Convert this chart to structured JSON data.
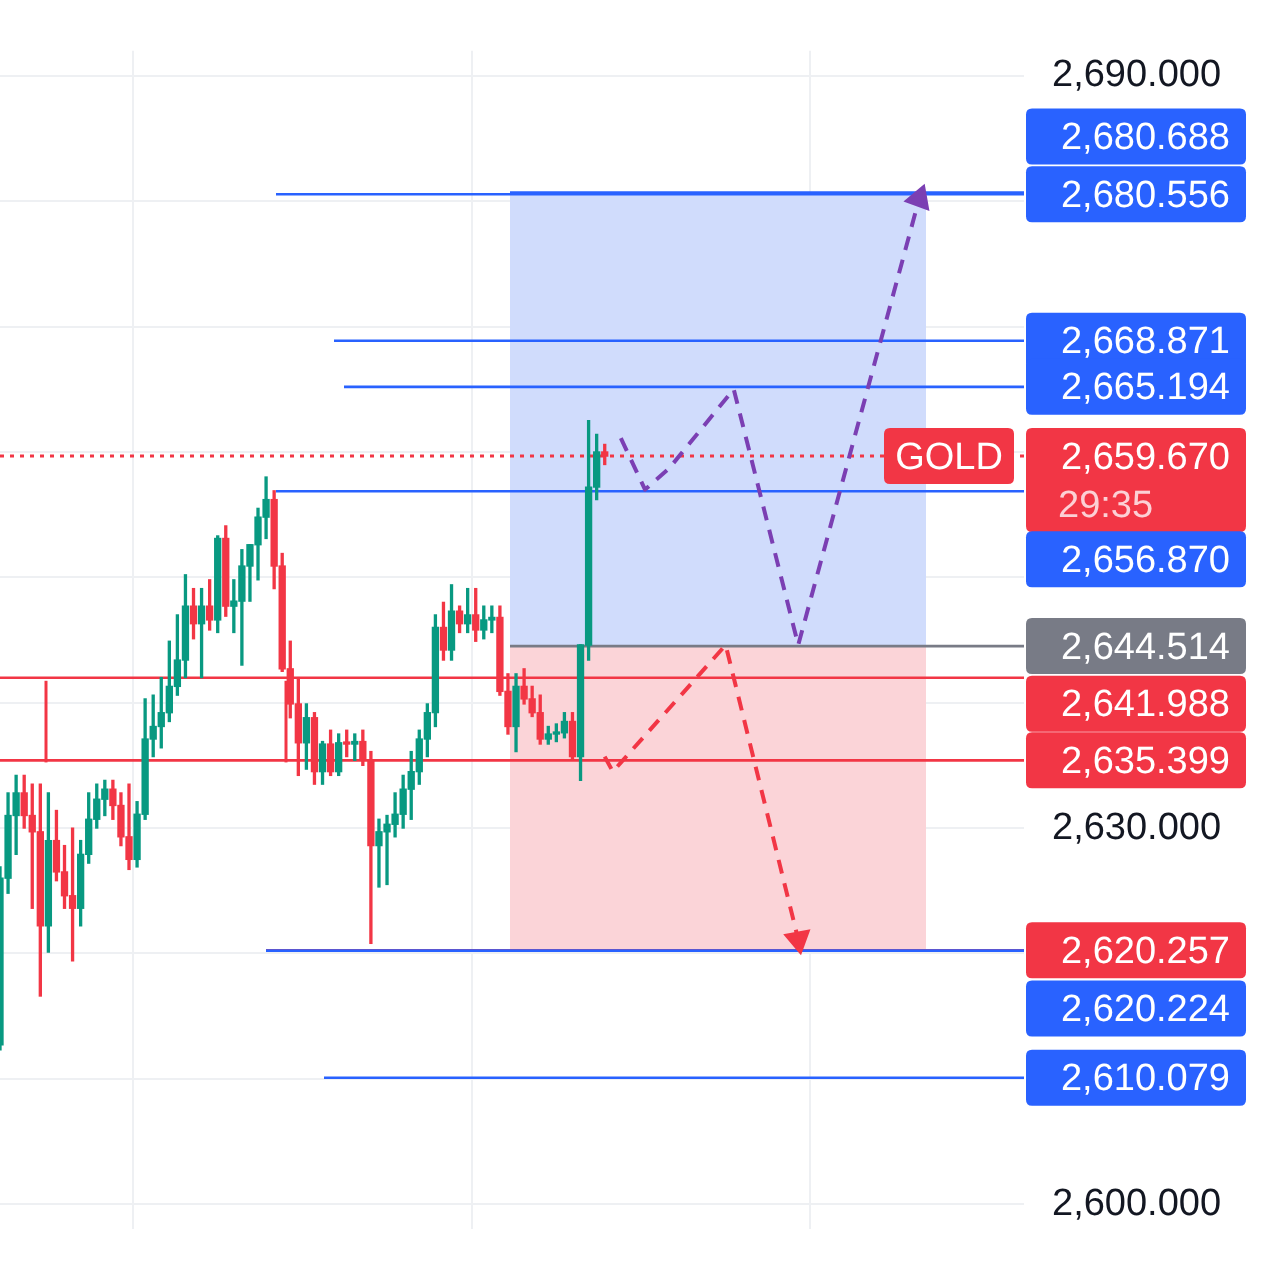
{
  "chart_data": {
    "type": "candlestick",
    "categories": [
      null,
      null,
      null,
      null,
      null,
      null,
      null,
      null,
      null,
      null,
      null,
      null,
      null,
      null,
      null,
      null,
      null,
      null,
      null,
      null,
      null,
      null,
      null,
      null,
      null,
      null,
      null,
      null,
      null,
      null,
      null,
      null,
      null,
      null,
      null,
      null,
      null,
      null,
      null,
      null,
      null,
      null,
      null,
      null,
      null,
      null,
      null,
      null,
      null,
      null,
      null,
      null,
      null,
      null,
      null,
      null,
      null,
      null,
      null,
      null,
      null,
      null,
      null,
      null,
      null,
      null,
      null,
      null,
      null,
      null,
      null,
      null,
      null,
      null,
      null,
      null,
      null,
      null,
      null,
      null,
      null,
      null,
      null,
      null,
      null,
      null,
      null,
      null,
      null,
      null,
      null,
      null,
      null,
      null,
      null,
      null,
      null,
      null,
      null,
      null,
      null,
      null,
      null,
      null,
      null,
      null,
      null,
      null,
      null,
      null,
      null,
      null,
      null,
      null,
      null,
      null,
      null,
      null,
      null,
      null,
      null,
      null,
      null,
      null,
      null,
      null,
      null,
      null
    ],
    "ohlc": [
      [
        2612.7,
        2626.9,
        2612.3,
        2626.0
      ],
      [
        2626.0,
        2632.8,
        2624.8,
        2631.0
      ],
      [
        2631.0,
        2634.2,
        2627.9,
        2632.8
      ],
      [
        2632.8,
        2634.2,
        2630.0,
        2631.0
      ],
      [
        2631.0,
        2633.5,
        2623.6,
        2629.7
      ],
      [
        2629.7,
        2633.5,
        2616.6,
        2622.2
      ],
      [
        2622.2,
        2632.8,
        2620.1,
        2629.0
      ],
      [
        2629.0,
        2631.4,
        2625.8,
        2626.5
      ],
      [
        2626.5,
        2628.6,
        2623.6,
        2624.6
      ],
      [
        2624.6,
        2630.0,
        2619.4,
        2623.6
      ],
      [
        2623.6,
        2629.0,
        2622.2,
        2627.9
      ],
      [
        2627.9,
        2632.8,
        2627.2,
        2630.7
      ],
      [
        2630.7,
        2633.5,
        2630.0,
        2632.3
      ],
      [
        2632.3,
        2633.8,
        2631.0,
        2633.1
      ],
      [
        2633.1,
        2633.8,
        2630.7,
        2631.8
      ],
      [
        2631.8,
        2632.8,
        2628.6,
        2629.3
      ],
      [
        2629.3,
        2633.5,
        2626.7,
        2627.5
      ],
      [
        2627.5,
        2632.1,
        2626.9,
        2631.1
      ],
      [
        2631.1,
        2640.3,
        2630.7,
        2637.1
      ],
      [
        2637.1,
        2640.6,
        2635.7,
        2638.1
      ],
      [
        2638.1,
        2642.0,
        2636.4,
        2639.2
      ],
      [
        2639.2,
        2644.9,
        2638.5,
        2641.3
      ],
      [
        2641.3,
        2647.0,
        2640.6,
        2643.4
      ],
      [
        2643.4,
        2650.2,
        2642.0,
        2647.7
      ],
      [
        2647.7,
        2649.1,
        2645.1,
        2646.3
      ],
      [
        2646.3,
        2649.1,
        2642.0,
        2647.7
      ],
      [
        2647.7,
        2649.8,
        2645.8,
        2646.6
      ],
      [
        2646.6,
        2653.3,
        2645.6,
        2653.1
      ],
      [
        2653.1,
        2654.1,
        2646.9,
        2647.7
      ],
      [
        2647.7,
        2649.8,
        2645.6,
        2648.1
      ],
      [
        2648.1,
        2652.2,
        2643.0,
        2650.9
      ],
      [
        2650.9,
        2652.6,
        2648.1,
        2652.6
      ],
      [
        2652.6,
        2655.5,
        2649.8,
        2654.8
      ],
      [
        2654.8,
        2658.0,
        2653.1,
        2656.2
      ],
      [
        2656.2,
        2656.9,
        2649.1,
        2650.9
      ],
      [
        2650.9,
        2651.9,
        2642.5,
        2642.7
      ],
      [
        2642.7,
        2644.9,
        2638.8,
        2639.9
      ],
      [
        2639.9,
        2642.0,
        2634.2,
        2636.8
      ],
      [
        2636.8,
        2639.9,
        2634.7,
        2638.8
      ],
      [
        2638.8,
        2639.2,
        2633.5,
        2634.5
      ],
      [
        2634.5,
        2636.9,
        2633.5,
        2636.7
      ],
      [
        2636.7,
        2637.8,
        2634.2,
        2634.5
      ],
      [
        2634.5,
        2637.5,
        2634.2,
        2636.8
      ],
      [
        2636.8,
        2637.8,
        2635.7,
        2636.7
      ],
      [
        2636.7,
        2637.5,
        2635.4,
        2636.9
      ],
      [
        2636.9,
        2637.8,
        2635.0,
        2635.4
      ],
      [
        2635.4,
        2636.1,
        2620.8,
        2628.6
      ],
      [
        2628.6,
        2630.7,
        2625.3,
        2629.7
      ],
      [
        2629.7,
        2631.0,
        2625.5,
        2630.3
      ],
      [
        2630.3,
        2632.8,
        2629.3,
        2631.1
      ],
      [
        2631.1,
        2634.2,
        2630.0,
        2633.1
      ],
      [
        2633.1,
        2636.1,
        2630.7,
        2634.5
      ],
      [
        2634.5,
        2637.8,
        2633.5,
        2637.1
      ],
      [
        2637.1,
        2639.9,
        2635.7,
        2639.2
      ],
      [
        2639.2,
        2647.0,
        2638.1,
        2646.0
      ],
      [
        2646.0,
        2648.0,
        2643.4,
        2644.2
      ],
      [
        2644.2,
        2649.4,
        2643.4,
        2647.3
      ],
      [
        2647.3,
        2647.7,
        2645.6,
        2646.3
      ],
      [
        2646.3,
        2649.1,
        2645.6,
        2647.0
      ],
      [
        2647.0,
        2649.1,
        2644.9,
        2645.8
      ],
      [
        2645.8,
        2647.7,
        2645.1,
        2646.6
      ],
      [
        2646.6,
        2647.7,
        2645.6,
        2646.8
      ],
      [
        2646.8,
        2647.7,
        2640.6,
        2640.9
      ],
      [
        2640.9,
        2642.3,
        2637.5,
        2638.1
      ],
      [
        2638.1,
        2642.3,
        2636.1,
        2641.3
      ],
      [
        2641.3,
        2642.7,
        2639.9,
        2640.3
      ],
      [
        2640.3,
        2641.3,
        2638.9,
        2639.2
      ],
      [
        2639.2,
        2640.6,
        2636.7,
        2637.1
      ],
      [
        2637.1,
        2638.1,
        2636.7,
        2637.5
      ],
      [
        2637.5,
        2638.3,
        2636.9,
        2637.6
      ],
      [
        2637.6,
        2639.2,
        2637.2,
        2638.5
      ],
      [
        2638.5,
        2639.2,
        2635.5,
        2635.7
      ],
      [
        2635.7,
        2644.6,
        2633.8,
        2644.6
      ],
      [
        2644.6,
        2662.5,
        2643.4,
        2657.2
      ],
      [
        2657.2,
        2661.4,
        2656.2,
        2660.0
      ],
      [
        2660.0,
        2660.6,
        2659.0,
        2659.67
      ],
      null,
      null,
      null,
      null,
      null,
      null,
      null,
      null,
      null,
      null,
      null,
      null,
      null,
      null,
      null,
      null,
      null,
      null,
      null,
      null,
      null,
      null,
      null,
      null,
      null,
      null,
      null,
      null,
      null,
      null,
      null,
      null,
      null,
      null,
      null,
      null,
      null,
      null,
      null,
      null,
      null,
      null,
      null,
      null,
      null,
      null,
      null,
      null,
      null,
      null,
      null,
      null
    ],
    "colors": [
      "#089981",
      "#089981",
      "#089981",
      "#f23645",
      "#f23645",
      "#f23645",
      "#089981",
      "#f23645",
      "#f23645",
      "#f23645",
      "#089981",
      "#089981",
      "#089981",
      "#089981",
      "#f23645",
      "#f23645",
      "#f23645",
      "#089981",
      "#089981",
      "#089981",
      "#089981",
      "#089981",
      "#089981",
      "#089981",
      "#f23645",
      "#089981",
      "#f23645",
      "#089981",
      "#f23645",
      "#089981",
      "#089981",
      "#089981",
      "#089981",
      "#089981",
      "#f23645",
      "#f23645",
      "#f23645",
      "#f23645",
      "#089981",
      "#f23645",
      "#089981",
      "#f23645",
      "#089981",
      "#f23645",
      "#089981",
      "#f23645",
      "#f23645",
      "#089981",
      "#089981",
      "#089981",
      "#089981",
      "#089981",
      "#089981",
      "#089981",
      "#089981",
      "#f23645",
      "#089981",
      "#f23645",
      "#089981",
      "#f23645",
      "#089981",
      "#089981",
      "#f23645",
      "#f23645",
      "#089981",
      "#f23645",
      "#f23645",
      "#f23645",
      "#089981",
      "#089981",
      "#089981",
      "#f23645",
      "#089981",
      "#089981",
      "#089981",
      "#f23645",
      null,
      null,
      null,
      null,
      null,
      null,
      null,
      null,
      null,
      null,
      null,
      null,
      null,
      null,
      null,
      null,
      null,
      null,
      null,
      null,
      null,
      null,
      null,
      null,
      null,
      null,
      null,
      null,
      null,
      null,
      null,
      null,
      null,
      null,
      null,
      null,
      null,
      null,
      null,
      null,
      null,
      null,
      null,
      null,
      null,
      null,
      null,
      null,
      null,
      null,
      null,
      null
    ],
    "ylim": [
      2598,
      2692
    ],
    "yticks": [
      {
        "value": 2600,
        "label": "2,600.000"
      },
      {
        "value": 2610,
        "label": null
      },
      {
        "value": 2620,
        "label": null
      },
      {
        "value": 2630,
        "label": "2,630.000"
      },
      {
        "value": 2640,
        "label": null
      },
      {
        "value": 2650,
        "label": null
      },
      {
        "value": 2660,
        "label": null
      },
      {
        "value": 2670,
        "label": null
      },
      {
        "value": 2680,
        "label": null
      },
      {
        "value": 2690,
        "label": "2,690.000"
      }
    ],
    "grid": true,
    "tick_labels": "y",
    "ref_lines": [
      {
        "axis": "y",
        "value": 2680.556,
        "label": "2,680.556",
        "color": "#2962ff"
      },
      {
        "axis": "y",
        "value": 2668.871,
        "label": "2,668.871",
        "color": "#2962ff"
      },
      {
        "axis": "y",
        "value": 2665.194,
        "label": "2,665.194",
        "color": "#2962ff"
      },
      {
        "axis": "y",
        "value": 2659.67,
        "label": "2,659.670",
        "color": "#f23645",
        "line_style": "dotted"
      },
      {
        "axis": "y",
        "value": 2656.87,
        "label": "2,656.870",
        "color": "#2962ff"
      },
      {
        "axis": "y",
        "value": 2644.514,
        "label": "2,644.514",
        "color": "#787b86"
      },
      {
        "axis": "y",
        "value": 2641.988,
        "label": "2,641.988",
        "color": "#f23645"
      },
      {
        "axis": "y",
        "value": 2635.399,
        "label": "2,635.399",
        "color": "#f23645"
      },
      {
        "axis": "y",
        "value": 2620.257,
        "label": "2,620.257",
        "color": "#f23645"
      },
      {
        "axis": "y",
        "value": 2620.224,
        "label": "2,620.224",
        "color": "#2962ff"
      },
      {
        "axis": "y",
        "value": 2610.079,
        "label": "2,610.079",
        "color": "#2962ff"
      },
      {
        "axis": "y",
        "value": 2680.688,
        "label": "2,680.688",
        "color": "#2962ff"
      }
    ],
    "bands": [
      {
        "axis": "y",
        "from": 2644.514,
        "to": 2680.556,
        "color": "#d0dcfc"
      },
      {
        "axis": "y",
        "from": 2620.257,
        "to": 2644.514,
        "color": "#fbd4d8"
      }
    ],
    "series": [
      {
        "type": "line",
        "color": "#7b3fb3",
        "line_style": "dashed",
        "values": [
          null,
          null,
          null,
          null,
          null,
          null,
          null,
          null,
          null,
          null,
          null,
          null,
          null,
          null,
          null,
          null,
          null,
          null,
          null,
          null,
          null,
          null,
          null,
          null,
          null,
          null,
          null,
          null,
          null,
          null,
          null,
          null,
          null,
          null,
          null,
          null,
          null,
          null,
          null,
          null,
          null,
          null,
          null,
          null,
          null,
          null,
          null,
          null,
          null,
          null,
          null,
          null,
          null,
          null,
          null,
          null,
          null,
          null,
          null,
          null,
          null,
          null,
          null,
          null,
          null,
          null,
          null,
          null,
          null,
          null,
          null,
          null,
          null,
          null,
          null,
          null,
          null,
          2661.1,
          null,
          null,
          2657.0,
          null,
          null,
          2658.7,
          null,
          null,
          null,
          null,
          null,
          null,
          null,
          2665.0,
          null,
          null,
          null,
          null,
          null,
          null,
          null,
          2644.6,
          null,
          null,
          null,
          null,
          null,
          null,
          null,
          null,
          null,
          null,
          null,
          null,
          null,
          null,
          2680.2,
          null,
          null,
          null,
          null,
          null,
          null,
          null,
          null,
          null,
          null,
          null,
          null,
          null
        ]
      },
      {
        "type": "line",
        "color": "#f23645",
        "line_style": "dashed",
        "values": [
          null,
          null,
          null,
          null,
          null,
          null,
          null,
          null,
          null,
          null,
          null,
          null,
          null,
          null,
          null,
          null,
          null,
          null,
          null,
          null,
          null,
          null,
          null,
          null,
          null,
          null,
          null,
          null,
          null,
          null,
          null,
          null,
          null,
          null,
          null,
          null,
          null,
          null,
          null,
          null,
          null,
          null,
          null,
          null,
          null,
          null,
          null,
          null,
          null,
          null,
          null,
          null,
          null,
          null,
          null,
          null,
          null,
          null,
          null,
          null,
          null,
          null,
          null,
          null,
          null,
          null,
          null,
          null,
          null,
          null,
          null,
          null,
          null,
          null,
          null,
          2635.7,
          2634.5,
          null,
          null,
          null,
          null,
          null,
          null,
          null,
          null,
          null,
          null,
          null,
          null,
          null,
          2644.6,
          null,
          null,
          null,
          null,
          null,
          null,
          null,
          null,
          2621.1,
          null,
          null,
          null,
          null,
          null,
          null,
          null,
          null,
          null,
          null,
          null,
          null,
          null,
          null,
          null,
          null,
          null,
          null,
          null,
          null,
          null,
          null,
          null,
          null,
          null,
          null,
          null,
          null
        ]
      }
    ],
    "annotations": [
      "GOLD",
      "29:35"
    ]
  }
}
